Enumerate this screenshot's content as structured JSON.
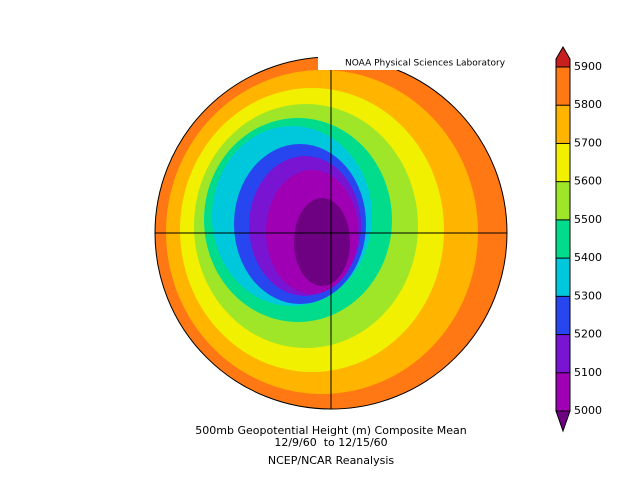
{
  "header": {
    "label": "NOAA Physical Sciences Laboratory"
  },
  "caption": {
    "title": "500mb Geopotential Height (m) Composite Mean",
    "dates": "12/9/60  to 12/15/60",
    "source": "NCEP/NCAR Reanalysis"
  },
  "colorbar": {
    "lim": [
      5000,
      5900
    ],
    "ticks": [
      5000,
      5100,
      5200,
      5300,
      5400,
      5500,
      5600,
      5700,
      5800,
      5900
    ],
    "colors": [
      "#6e0082",
      "#a000b4",
      "#7814d2",
      "#2846f0",
      "#00c8dc",
      "#00dc8c",
      "#a0e628",
      "#f0f000",
      "#ffb400",
      "#ff7814",
      "#c81e1e"
    ]
  }
}
